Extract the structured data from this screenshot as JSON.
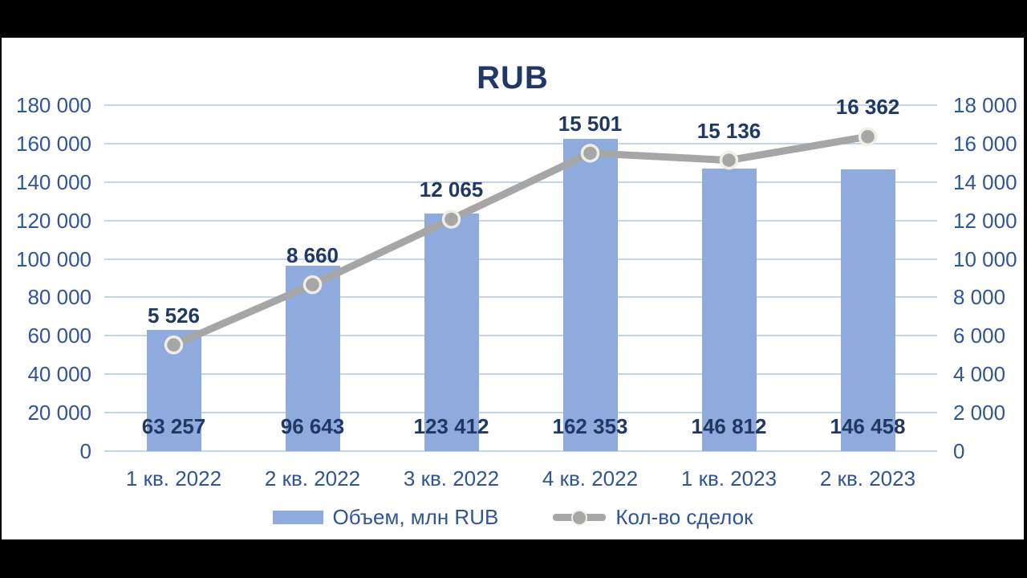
{
  "chart_data": {
    "type": "combo-bar-line",
    "title": "RUB",
    "categories": [
      "1 кв. 2022",
      "2 кв. 2022",
      "3 кв. 2022",
      "4 кв. 2022",
      "1 кв. 2023",
      "2 кв. 2023"
    ],
    "series": [
      {
        "name": "Объем, млн RUB",
        "type": "bar",
        "axis": "left",
        "values": [
          63257,
          96643,
          123412,
          162353,
          146812,
          146458
        ],
        "labels": [
          "63 257",
          "96 643",
          "123 412",
          "162 353",
          "146 812",
          "146 458"
        ],
        "color": "#8FAADC"
      },
      {
        "name": "Кол-во сделок",
        "type": "line",
        "axis": "right",
        "values": [
          5526,
          8660,
          12065,
          15501,
          15136,
          16362
        ],
        "labels": [
          "5 526",
          "8 660",
          "12 065",
          "15 501",
          "15 136",
          "16 362"
        ],
        "color": "#A6A6A6"
      }
    ],
    "left_axis": {
      "min": 0,
      "max": 180000,
      "tick_step": 20000,
      "tick_labels": [
        "0",
        "20 000",
        "40 000",
        "60 000",
        "80 000",
        "100 000",
        "120 000",
        "140 000",
        "160 000",
        "180 000"
      ]
    },
    "right_axis": {
      "min": 0,
      "max": 18000,
      "tick_step": 2000,
      "tick_labels": [
        "0",
        "2 000",
        "4 000",
        "6 000",
        "8 000",
        "10 000",
        "12 000",
        "14 000",
        "16 000",
        "18 000"
      ]
    },
    "grid": true,
    "legend_position": "bottom",
    "colors": {
      "title": "#1F3864",
      "data_label": "#1F3864",
      "axis_label": "#2F5597",
      "grid": "#C3D5EC",
      "bar": "#8FAADC",
      "line": "#A6A6A6",
      "marker_ring": "#EFEDE4",
      "background": "#FFFFFF",
      "frame": "#000000"
    }
  }
}
